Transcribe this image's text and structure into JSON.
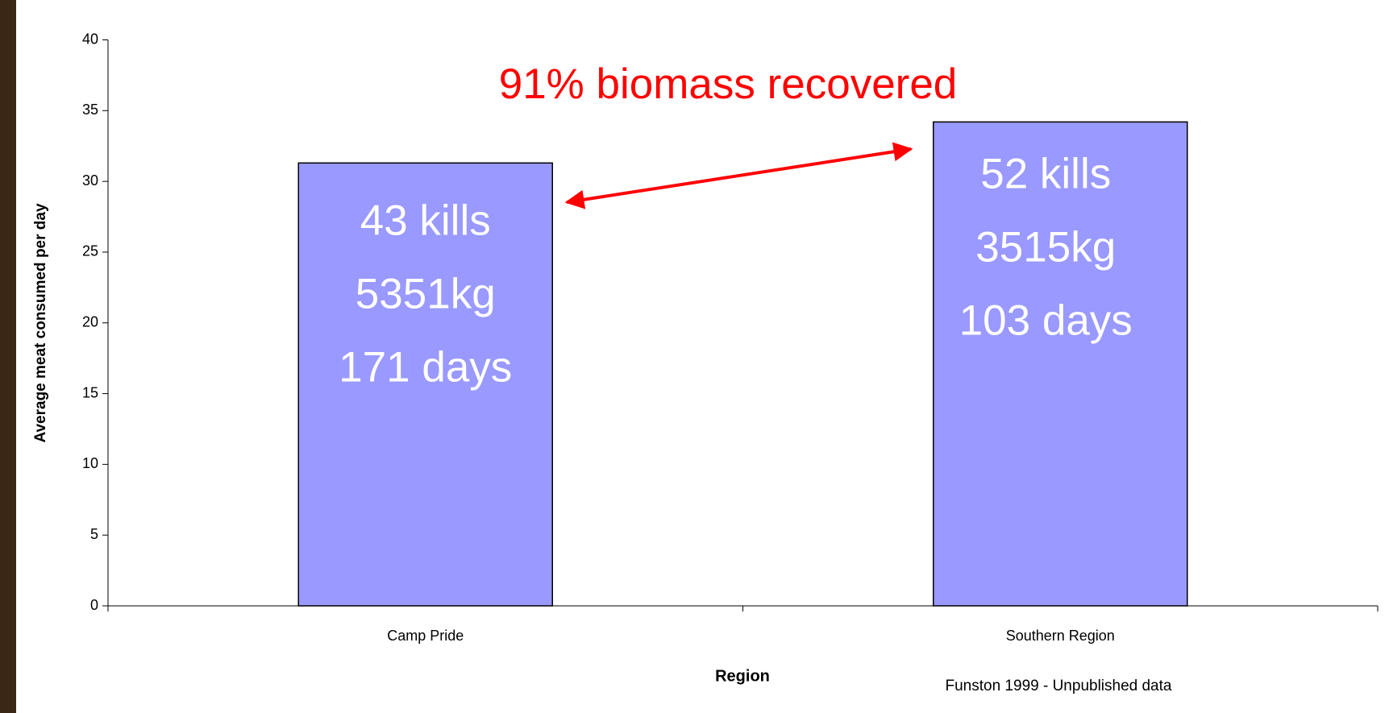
{
  "chart_data": {
    "type": "bar",
    "annotation": "91% biomass recovered",
    "categories": [
      "Camp Pride",
      "Southern Region"
    ],
    "values": [
      31.3,
      34.2
    ],
    "bar_labels": [
      [
        "43 kills",
        "5351kg",
        "171 days"
      ],
      [
        "52 kills",
        "3515kg",
        "103 days"
      ]
    ],
    "color": "#9999ff",
    "xlabel": "Region",
    "ylabel": "Average meat consumed per day",
    "source": "Funston 1999 - Unpublished data",
    "ylim": [
      0,
      40
    ],
    "yticks": [
      0,
      5,
      10,
      15,
      20,
      25,
      30,
      35,
      40
    ],
    "grid": false
  }
}
